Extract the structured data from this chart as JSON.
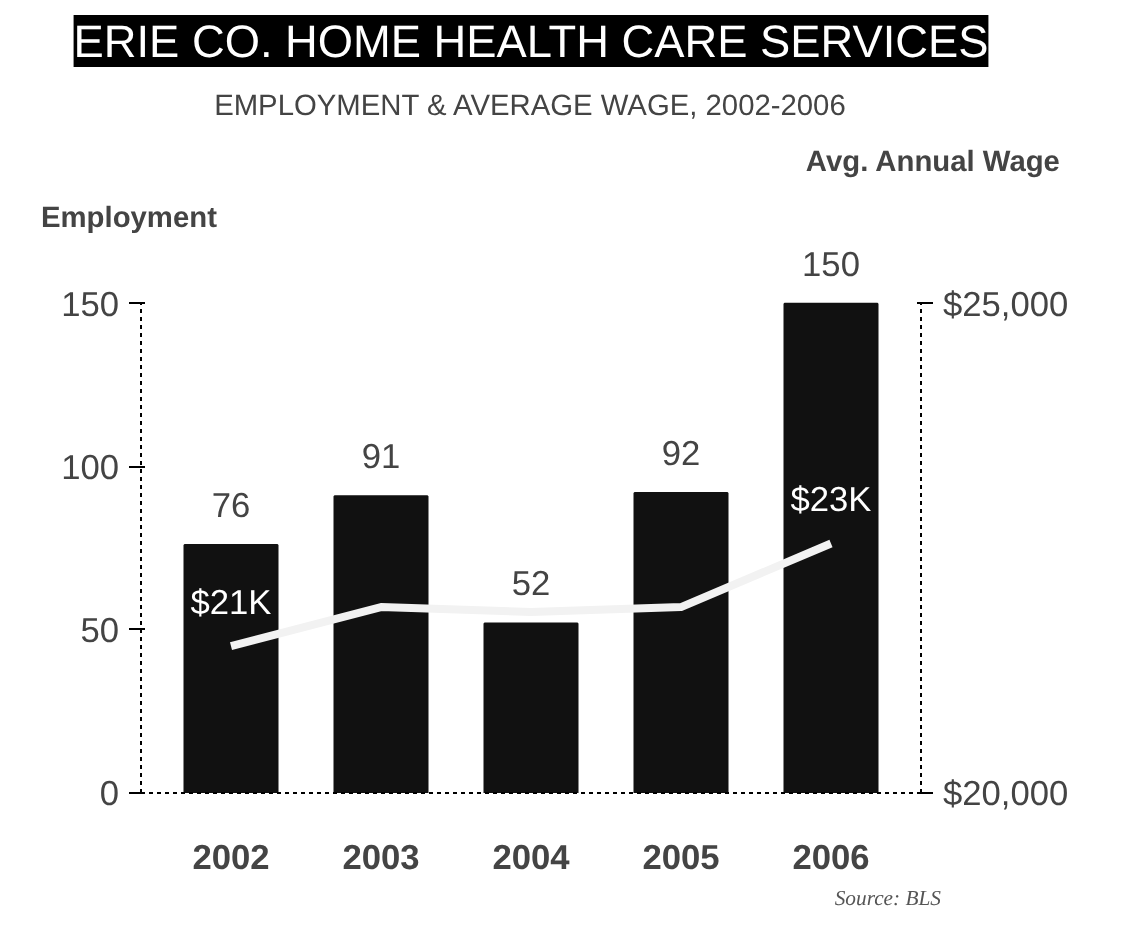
{
  "chart_data": {
    "type": "bar",
    "title": "ERIE CO. HOME HEALTH CARE SERVICES",
    "subtitle": "EMPLOYMENT & AVERAGE WAGE, 2002-2006",
    "ylabel": "Employment",
    "y2label": "Avg. Annual Wage",
    "categories": [
      "2002",
      "2003",
      "2004",
      "2005",
      "2006"
    ],
    "series": [
      {
        "type": "bar",
        "color": "#111111",
        "values": [
          76,
          91,
          52,
          92,
          150
        ],
        "data_labels": true
      },
      {
        "type": "line",
        "axis": "y2",
        "color": "#f2f2f2",
        "values": [
          21500,
          21900,
          21850,
          21900,
          22550
        ],
        "value_labels": [
          "$21K",
          null,
          null,
          null,
          "$23K"
        ]
      }
    ],
    "ylim": [
      0,
      150
    ],
    "yticks": [
      0,
      50,
      100,
      150
    ],
    "y2lim": [
      20000,
      25000
    ],
    "y2ticks": [
      {
        "value": 20000,
        "label": "$20,000"
      },
      {
        "value": 25000,
        "label": "$25,000"
      }
    ],
    "grid": false,
    "marker": "none",
    "line_style": "solid",
    "annotations": [
      "Source: BLS"
    ]
  }
}
